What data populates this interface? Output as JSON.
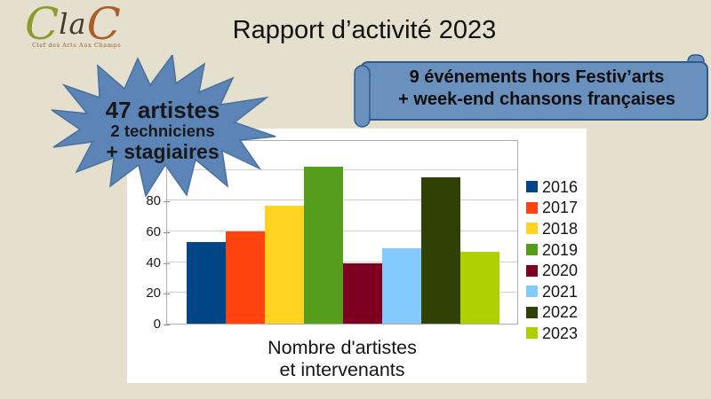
{
  "slide": {
    "title": "Rapport d’activité 2023",
    "background_color": "#E5DFCE"
  },
  "logo": {
    "c1": "C",
    "la": "la",
    "c2": "C",
    "tagline": "Clef des Arts Aux Champs",
    "colors": {
      "c1": "#8A9C2E",
      "la": "#3F3A2E",
      "c2": "#AA5F2B",
      "tagline": "#9A5B2F"
    }
  },
  "starburst": {
    "lines": [
      "47 artistes",
      "2 techniciens",
      "+ stagiaires"
    ],
    "fill": "#5C84B6",
    "stroke": "#48719F"
  },
  "banner": {
    "lines": [
      "9 événements hors Festiv’arts",
      "+ week-end chansons françaises"
    ],
    "fill": "#6A90BD",
    "border": "#2E5C8A"
  },
  "chart_data": {
    "type": "bar",
    "categories": [
      "2016",
      "2017",
      "2018",
      "2019",
      "2020",
      "2021",
      "2022",
      "2023"
    ],
    "values": [
      53,
      60,
      77,
      102,
      39,
      49,
      95,
      47
    ],
    "colors": [
      "#004586",
      "#FF420E",
      "#FFD320",
      "#579D1C",
      "#7E0021",
      "#83CAFF",
      "#314004",
      "#AECF00"
    ],
    "title": "",
    "xlabel_lines": [
      "Nombre d'artistes",
      "et intervenants"
    ],
    "ylabel": "",
    "ylim": [
      0,
      120
    ],
    "ytick_step": 20,
    "yticks_visible": [
      0,
      20,
      40,
      60,
      80
    ],
    "grid": true,
    "legend_position": "right",
    "plot_background": "#ffffff"
  }
}
